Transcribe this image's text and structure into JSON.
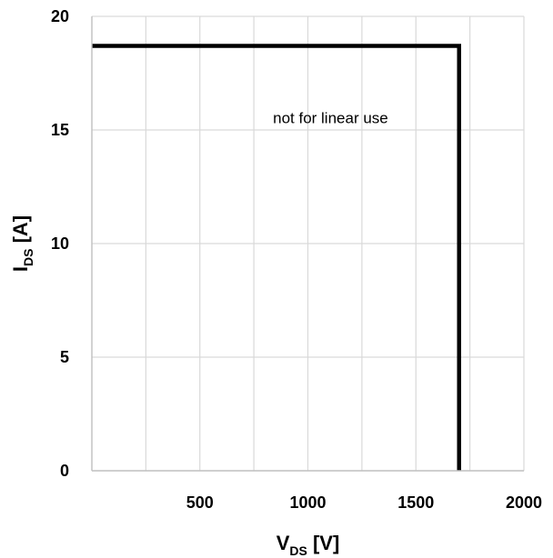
{
  "chart_data": {
    "type": "line",
    "title": "",
    "xlabel": {
      "main": "V",
      "sub": "DS",
      "unit": " [V]"
    },
    "ylabel": {
      "main": "I",
      "sub": "DS",
      "unit": " [A]"
    },
    "xlim": [
      0,
      2000
    ],
    "ylim": [
      0,
      20
    ],
    "xticks": [
      500,
      1000,
      1500,
      2000
    ],
    "xtick_labels": [
      "500",
      "1000",
      "1500",
      "2000"
    ],
    "yticks": [
      0,
      5,
      10,
      15,
      20
    ],
    "ytick_labels": [
      "0",
      "5",
      "10",
      "15",
      "20"
    ],
    "x_gridlines": [
      250,
      500,
      750,
      1000,
      1250,
      1500,
      1750,
      2000
    ],
    "y_gridlines": [
      5,
      10,
      15,
      20
    ],
    "grid": true,
    "legend": "none",
    "series": [
      {
        "x": [
          0,
          1700,
          1700
        ],
        "y": [
          18.7,
          18.7,
          0
        ],
        "color": "#000000"
      }
    ],
    "annotations": [
      {
        "text": "not for linear use",
        "x": 1105,
        "y": 15.3
      }
    ]
  }
}
